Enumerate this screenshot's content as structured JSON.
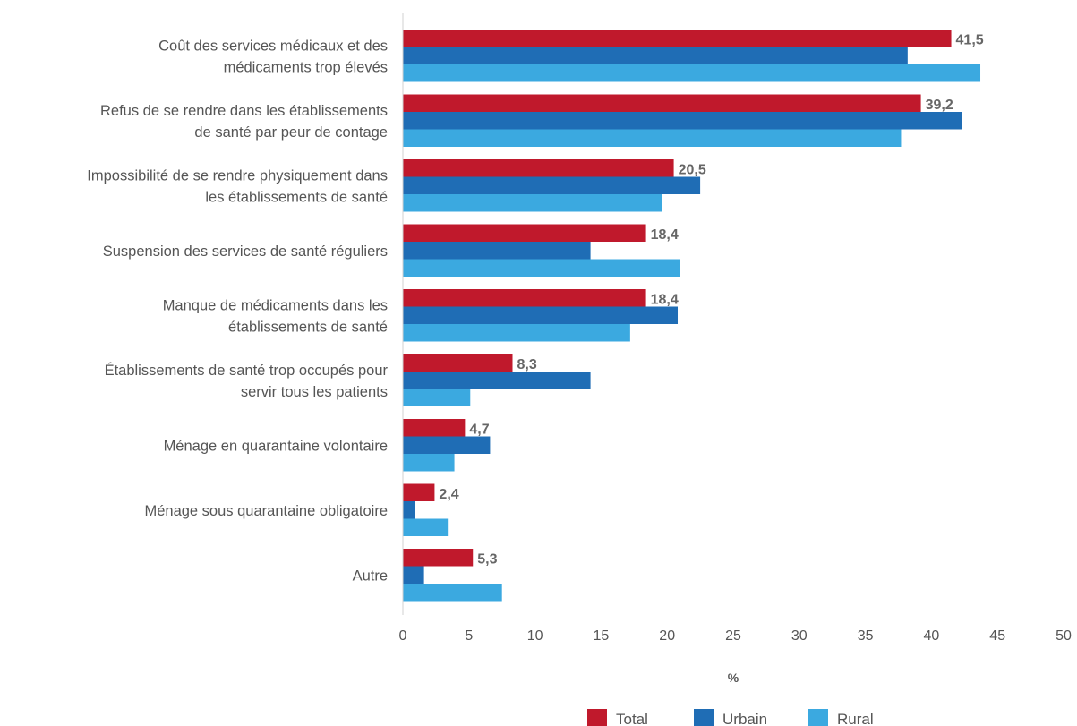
{
  "chart_data": {
    "type": "bar",
    "orientation": "horizontal",
    "categories": [
      [
        "Coût des services médicaux et des",
        "médicaments trop élevés"
      ],
      [
        "Refus de se rendre dans les établissements",
        "de santé par peur de contage"
      ],
      [
        "Impossibilité de se rendre physiquement dans",
        "les établissements de santé"
      ],
      [
        "Suspension des services de santé réguliers"
      ],
      [
        "Manque de médicaments dans les",
        "établissements de santé"
      ],
      [
        "Établissements de santé trop occupés pour",
        "servir tous les patients"
      ],
      [
        "Ménage en quarantaine volontaire"
      ],
      [
        "Ménage sous quarantaine obligatoire"
      ],
      [
        "Autre"
      ]
    ],
    "series": [
      {
        "name": "Total",
        "color": "#c0192c",
        "values": [
          41.5,
          39.2,
          20.5,
          18.4,
          18.4,
          8.3,
          4.7,
          2.4,
          5.3
        ]
      },
      {
        "name": "Urbain",
        "color": "#1f6db5",
        "values": [
          38.2,
          42.3,
          22.5,
          14.2,
          20.8,
          14.2,
          6.6,
          0.9,
          1.6
        ]
      },
      {
        "name": "Rural",
        "color": "#3ba9e0",
        "values": [
          43.7,
          37.7,
          19.6,
          21.0,
          17.2,
          5.1,
          3.9,
          3.4,
          7.5
        ]
      }
    ],
    "data_labels": [
      "41,5",
      "39,2",
      "20,5",
      "18,4",
      "18,4",
      "8,3",
      "4,7",
      "2,4",
      "5,3"
    ],
    "x_ticks": [
      "0",
      "5",
      "10",
      "15",
      "20",
      "25",
      "30",
      "35",
      "40",
      "45",
      "50"
    ],
    "xlim": [
      0,
      50
    ],
    "xlabel": "%",
    "legend_position": "bottom-right",
    "grid": false
  }
}
